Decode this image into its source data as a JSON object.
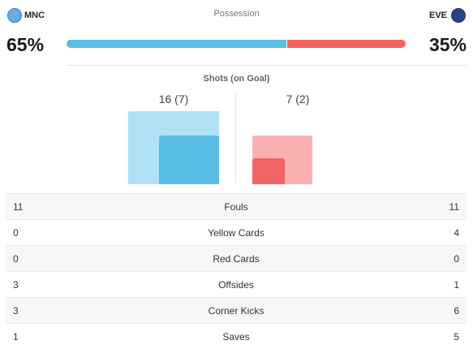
{
  "home": {
    "abbr": "MNC",
    "possession": "65%",
    "possession_value": 65,
    "color": "#5bbde4",
    "crest_color": "#6cabdd"
  },
  "away": {
    "abbr": "EVE",
    "possession": "35%",
    "possession_value": 35,
    "color": "#f26464",
    "crest_color": "#274488"
  },
  "possession_label": "Possession",
  "shots": {
    "title": "Shots (on Goal)",
    "home_label": "16 (7)",
    "away_label": "7 (2)",
    "home_total": 16,
    "home_on_goal": 7,
    "away_total": 7,
    "away_on_goal": 2
  },
  "stats": [
    {
      "home": "11",
      "label": "Fouls",
      "away": "11"
    },
    {
      "home": "0",
      "label": "Yellow Cards",
      "away": "4"
    },
    {
      "home": "0",
      "label": "Red Cards",
      "away": "0"
    },
    {
      "home": "3",
      "label": "Offsides",
      "away": "1"
    },
    {
      "home": "3",
      "label": "Corner Kicks",
      "away": "6"
    },
    {
      "home": "1",
      "label": "Saves",
      "away": "5"
    }
  ]
}
